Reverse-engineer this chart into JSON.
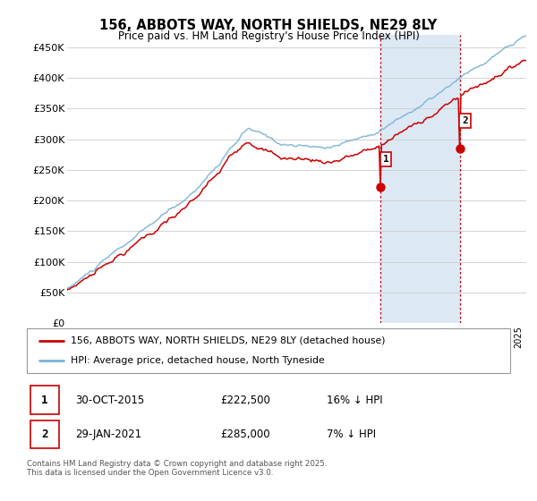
{
  "title": "156, ABBOTS WAY, NORTH SHIELDS, NE29 8LY",
  "subtitle": "Price paid vs. HM Land Registry's House Price Index (HPI)",
  "ylabel_ticks": [
    "£0",
    "£50K",
    "£100K",
    "£150K",
    "£200K",
    "£250K",
    "£300K",
    "£350K",
    "£400K",
    "£450K"
  ],
  "ytick_values": [
    0,
    50000,
    100000,
    150000,
    200000,
    250000,
    300000,
    350000,
    400000,
    450000
  ],
  "ylim": [
    0,
    470000
  ],
  "xlim_start": 1995.0,
  "xlim_end": 2025.5,
  "hpi_color": "#7ab3d4",
  "price_color": "#cc0000",
  "highlight_bg": "#dce9f5",
  "vline_color": "#cc0000",
  "vline_style": ":",
  "annotation_box_color": "#cc0000",
  "transaction1_x": 2015.83,
  "transaction1_y": 222500,
  "transaction2_x": 2021.08,
  "transaction2_y": 285000,
  "legend_line1": "156, ABBOTS WAY, NORTH SHIELDS, NE29 8LY (detached house)",
  "legend_line2": "HPI: Average price, detached house, North Tyneside",
  "table_row1": [
    "1",
    "30-OCT-2015",
    "£222,500",
    "16% ↓ HPI"
  ],
  "table_row2": [
    "2",
    "29-JAN-2021",
    "£285,000",
    "7% ↓ HPI"
  ],
  "footnote": "Contains HM Land Registry data © Crown copyright and database right 2025.\nThis data is licensed under the Open Government Licence v3.0.",
  "bg_color": "#ffffff",
  "grid_color": "#cccccc"
}
